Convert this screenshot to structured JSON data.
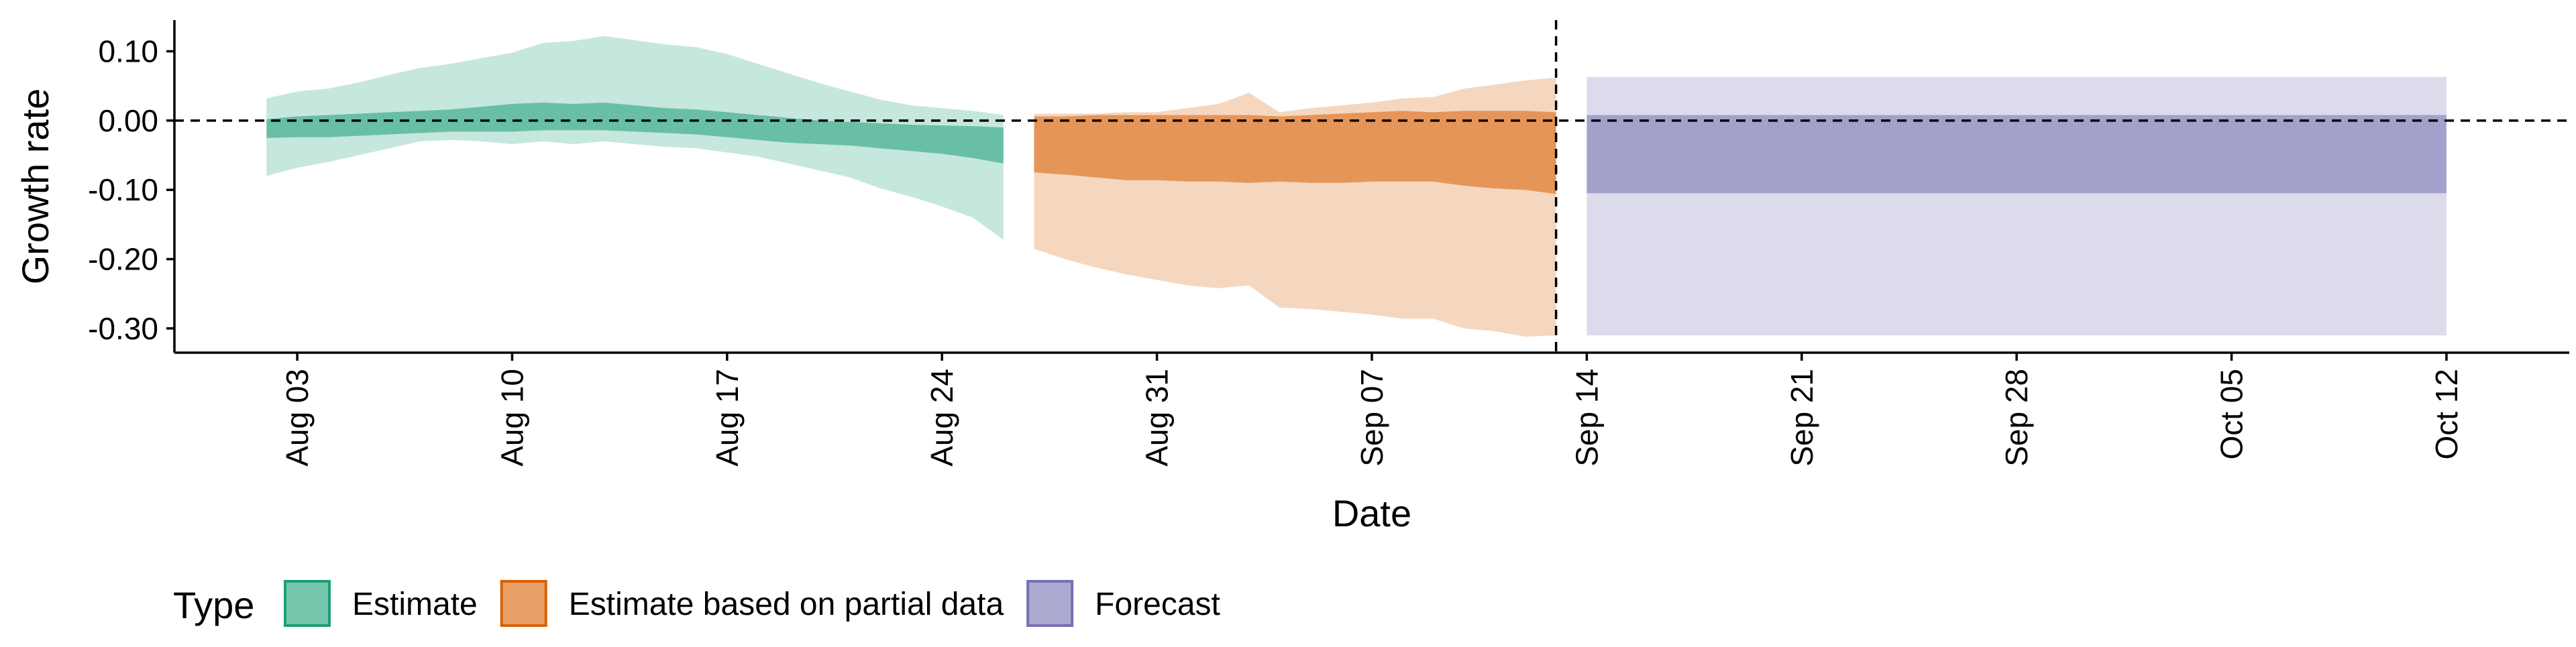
{
  "chart_data": {
    "type": "area",
    "title": "",
    "xlabel": "Date",
    "ylabel": "Growth rate",
    "x_type": "date",
    "xlim": [
      "2020-07-30",
      "2020-10-16"
    ],
    "ylim": [
      -0.335,
      0.145
    ],
    "x_ticks": [
      {
        "date": "2020-08-03",
        "label": "Aug 03"
      },
      {
        "date": "2020-08-10",
        "label": "Aug 10"
      },
      {
        "date": "2020-08-17",
        "label": "Aug 17"
      },
      {
        "date": "2020-08-24",
        "label": "Aug 24"
      },
      {
        "date": "2020-08-31",
        "label": "Aug 31"
      },
      {
        "date": "2020-09-07",
        "label": "Sep 07"
      },
      {
        "date": "2020-09-14",
        "label": "Sep 14"
      },
      {
        "date": "2020-09-21",
        "label": "Sep 21"
      },
      {
        "date": "2020-09-28",
        "label": "Sep 28"
      },
      {
        "date": "2020-10-05",
        "label": "Oct 05"
      },
      {
        "date": "2020-10-12",
        "label": "Oct 12"
      }
    ],
    "y_ticks": [
      {
        "value": 0.1,
        "label": "0.10"
      },
      {
        "value": 0.0,
        "label": "0.00"
      },
      {
        "value": -0.1,
        "label": "-0.10"
      },
      {
        "value": -0.2,
        "label": "-0.20"
      },
      {
        "value": -0.3,
        "label": "-0.30"
      }
    ],
    "reference_lines": [
      {
        "orientation": "horizontal",
        "value": 0.0,
        "style": "dashed"
      },
      {
        "orientation": "vertical",
        "date": "2020-09-13",
        "style": "dashed"
      }
    ],
    "grid": false,
    "legend": {
      "title": "Type",
      "position": "bottom-left",
      "entries": [
        "Estimate",
        "Estimate based on partial data",
        "Forecast"
      ]
    },
    "series": [
      {
        "name": "Estimate",
        "color": "#1B9E77",
        "points": [
          {
            "x": "2020-08-02",
            "lower90": -0.08,
            "upper90": 0.032,
            "lower50": -0.025,
            "upper50": 0.002
          },
          {
            "x": "2020-08-03",
            "lower90": -0.068,
            "upper90": 0.042,
            "lower50": -0.024,
            "upper50": 0.006
          },
          {
            "x": "2020-08-04",
            "lower90": -0.06,
            "upper90": 0.046,
            "lower50": -0.024,
            "upper50": 0.008
          },
          {
            "x": "2020-08-05",
            "lower90": -0.05,
            "upper90": 0.055,
            "lower50": -0.022,
            "upper50": 0.01
          },
          {
            "x": "2020-08-06",
            "lower90": -0.04,
            "upper90": 0.066,
            "lower50": -0.02,
            "upper50": 0.012
          },
          {
            "x": "2020-08-07",
            "lower90": -0.03,
            "upper90": 0.076,
            "lower50": -0.018,
            "upper50": 0.014
          },
          {
            "x": "2020-08-08",
            "lower90": -0.028,
            "upper90": 0.082,
            "lower50": -0.016,
            "upper50": 0.016
          },
          {
            "x": "2020-08-09",
            "lower90": -0.03,
            "upper90": 0.09,
            "lower50": -0.016,
            "upper50": 0.02
          },
          {
            "x": "2020-08-10",
            "lower90": -0.034,
            "upper90": 0.098,
            "lower50": -0.016,
            "upper50": 0.024
          },
          {
            "x": "2020-08-11",
            "lower90": -0.03,
            "upper90": 0.112,
            "lower50": -0.014,
            "upper50": 0.026
          },
          {
            "x": "2020-08-12",
            "lower90": -0.034,
            "upper90": 0.115,
            "lower50": -0.014,
            "upper50": 0.024
          },
          {
            "x": "2020-08-13",
            "lower90": -0.03,
            "upper90": 0.122,
            "lower50": -0.014,
            "upper50": 0.026
          },
          {
            "x": "2020-08-14",
            "lower90": -0.034,
            "upper90": 0.116,
            "lower50": -0.016,
            "upper50": 0.022
          },
          {
            "x": "2020-08-15",
            "lower90": -0.038,
            "upper90": 0.11,
            "lower50": -0.018,
            "upper50": 0.018
          },
          {
            "x": "2020-08-16",
            "lower90": -0.04,
            "upper90": 0.106,
            "lower50": -0.02,
            "upper50": 0.016
          },
          {
            "x": "2020-08-17",
            "lower90": -0.046,
            "upper90": 0.096,
            "lower50": -0.024,
            "upper50": 0.012
          },
          {
            "x": "2020-08-18",
            "lower90": -0.052,
            "upper90": 0.082,
            "lower50": -0.028,
            "upper50": 0.008
          },
          {
            "x": "2020-08-19",
            "lower90": -0.062,
            "upper90": 0.068,
            "lower50": -0.032,
            "upper50": 0.004
          },
          {
            "x": "2020-08-20",
            "lower90": -0.072,
            "upper90": 0.054,
            "lower50": -0.034,
            "upper50": 0.0
          },
          {
            "x": "2020-08-21",
            "lower90": -0.082,
            "upper90": 0.042,
            "lower50": -0.036,
            "upper50": -0.002
          },
          {
            "x": "2020-08-22",
            "lower90": -0.098,
            "upper90": 0.03,
            "lower50": -0.04,
            "upper50": -0.004
          },
          {
            "x": "2020-08-23",
            "lower90": -0.11,
            "upper90": 0.022,
            "lower50": -0.044,
            "upper50": -0.006
          },
          {
            "x": "2020-08-24",
            "lower90": -0.124,
            "upper90": 0.018,
            "lower50": -0.048,
            "upper50": -0.007
          },
          {
            "x": "2020-08-25",
            "lower90": -0.14,
            "upper90": 0.014,
            "lower50": -0.054,
            "upper50": -0.008
          },
          {
            "x": "2020-08-26",
            "lower90": -0.172,
            "upper90": 0.008,
            "lower50": -0.062,
            "upper50": -0.01
          }
        ]
      },
      {
        "name": "Estimate based on partial data",
        "color": "#D95F02",
        "points": [
          {
            "x": "2020-08-27",
            "lower90": -0.185,
            "upper90": 0.01,
            "lower50": -0.075,
            "upper50": 0.006
          },
          {
            "x": "2020-08-28",
            "lower90": -0.2,
            "upper90": 0.01,
            "lower50": -0.078,
            "upper50": 0.006
          },
          {
            "x": "2020-08-29",
            "lower90": -0.212,
            "upper90": 0.01,
            "lower50": -0.082,
            "upper50": 0.008
          },
          {
            "x": "2020-08-30",
            "lower90": -0.222,
            "upper90": 0.012,
            "lower50": -0.086,
            "upper50": 0.008
          },
          {
            "x": "2020-08-31",
            "lower90": -0.23,
            "upper90": 0.012,
            "lower50": -0.086,
            "upper50": 0.008
          },
          {
            "x": "2020-09-01",
            "lower90": -0.238,
            "upper90": 0.018,
            "lower50": -0.088,
            "upper50": 0.008
          },
          {
            "x": "2020-09-02",
            "lower90": -0.242,
            "upper90": 0.024,
            "lower50": -0.088,
            "upper50": 0.008
          },
          {
            "x": "2020-09-03",
            "lower90": -0.238,
            "upper90": 0.04,
            "lower50": -0.09,
            "upper50": 0.008
          },
          {
            "x": "2020-09-04",
            "lower90": -0.27,
            "upper90": 0.012,
            "lower50": -0.088,
            "upper50": 0.006
          },
          {
            "x": "2020-09-05",
            "lower90": -0.272,
            "upper90": 0.018,
            "lower50": -0.09,
            "upper50": 0.008
          },
          {
            "x": "2020-09-06",
            "lower90": -0.276,
            "upper90": 0.022,
            "lower50": -0.09,
            "upper50": 0.01
          },
          {
            "x": "2020-09-07",
            "lower90": -0.28,
            "upper90": 0.026,
            "lower50": -0.088,
            "upper50": 0.012
          },
          {
            "x": "2020-09-08",
            "lower90": -0.286,
            "upper90": 0.032,
            "lower50": -0.088,
            "upper50": 0.014
          },
          {
            "x": "2020-09-09",
            "lower90": -0.286,
            "upper90": 0.034,
            "lower50": -0.088,
            "upper50": 0.012
          },
          {
            "x": "2020-09-10",
            "lower90": -0.3,
            "upper90": 0.046,
            "lower50": -0.094,
            "upper50": 0.014
          },
          {
            "x": "2020-09-11",
            "lower90": -0.304,
            "upper90": 0.052,
            "lower50": -0.098,
            "upper50": 0.014
          },
          {
            "x": "2020-09-12",
            "lower90": -0.312,
            "upper90": 0.058,
            "lower50": -0.1,
            "upper50": 0.014
          },
          {
            "x": "2020-09-13",
            "lower90": -0.31,
            "upper90": 0.062,
            "lower50": -0.106,
            "upper50": 0.012
          }
        ]
      },
      {
        "name": "Forecast",
        "color": "#7570B3",
        "points": [
          {
            "x": "2020-09-14",
            "lower90": -0.31,
            "upper90": 0.063,
            "lower50": -0.105,
            "upper50": 0.008
          },
          {
            "x": "2020-10-12",
            "lower90": -0.31,
            "upper90": 0.063,
            "lower50": -0.105,
            "upper50": 0.008
          }
        ]
      }
    ]
  }
}
